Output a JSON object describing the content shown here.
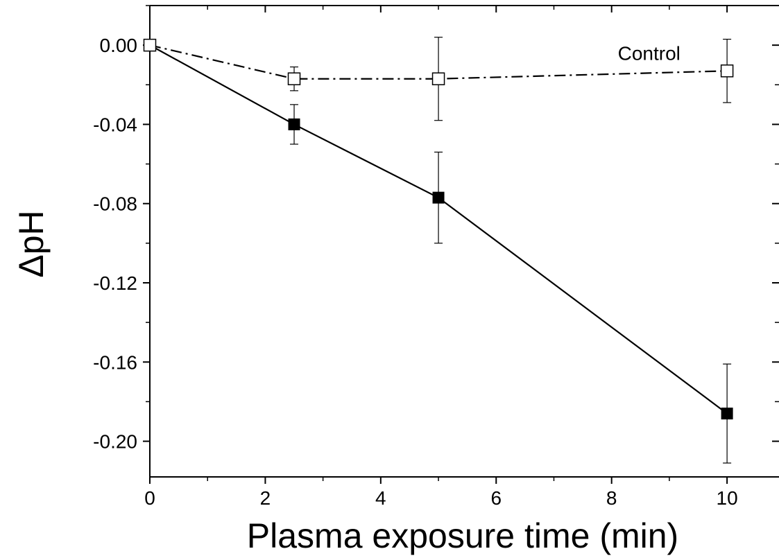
{
  "chart_data": {
    "type": "line",
    "xlabel": "Plasma exposure time (min)",
    "ylabel": "ΔpH",
    "xlim": [
      0,
      10.9
    ],
    "ylim": [
      -0.218,
      0.02
    ],
    "x_ticks": [
      0,
      2,
      4,
      6,
      8,
      10
    ],
    "x_tick_labels": [
      "0",
      "2",
      "4",
      "6",
      "8",
      "10"
    ],
    "y_ticks": [
      0.0,
      -0.04,
      -0.08,
      -0.12,
      -0.16,
      -0.2
    ],
    "y_tick_labels": [
      "0.00",
      "-0.04",
      "-0.08",
      "-0.12",
      "-0.16",
      "-0.20"
    ],
    "grid": false,
    "series": [
      {
        "name": "",
        "marker": "filled-square",
        "line_style": "solid",
        "color": "#000000",
        "x": [
          0,
          2.5,
          5,
          10
        ],
        "y": [
          0.0,
          -0.04,
          -0.077,
          -0.186
        ],
        "error": [
          0,
          0.01,
          0.023,
          0.025
        ]
      },
      {
        "name": "Control",
        "marker": "open-square",
        "line_style": "dash-dot",
        "color": "#000000",
        "x": [
          0,
          2.5,
          5,
          10
        ],
        "y": [
          0.0,
          -0.017,
          -0.017,
          -0.013
        ],
        "error": [
          0,
          0.006,
          0.021,
          0.016
        ]
      }
    ],
    "annotations": [
      {
        "text": "Control",
        "x": 8.65,
        "y": -0.004
      }
    ]
  }
}
